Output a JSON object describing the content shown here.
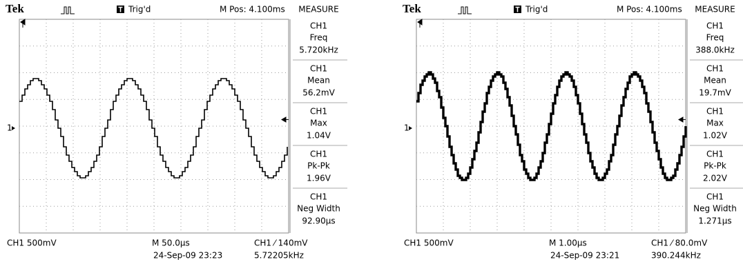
{
  "screens": [
    {
      "header": {
        "brand": "Tek",
        "trigger": "Trig'd",
        "position": "M Pos: 4.100ms",
        "menu": "MEASURE"
      },
      "channel_marker": "1",
      "measurements": [
        {
          "channel": "CH1",
          "label": "Freq",
          "value": "5.720kHz"
        },
        {
          "channel": "CH1",
          "label": "Mean",
          "value": "56.2mV"
        },
        {
          "channel": "CH1",
          "label": "Max",
          "value": "1.04V"
        },
        {
          "channel": "CH1",
          "label": "Pk-Pk",
          "value": "1.96V"
        },
        {
          "channel": "CH1",
          "label": "Neg Width",
          "value": "92.90µs"
        }
      ],
      "footer": {
        "channel_scale": "CH1  500mV",
        "timebase": "M 50.0µs",
        "trigger_level": "CH1 ⁄ 140mV",
        "timestamp": "24-Sep-09 23:23",
        "trigger_freq": "5.72205kHz"
      }
    },
    {
      "header": {
        "brand": "Tek",
        "trigger": "Trig'd",
        "position": "M Pos: 4.100ms",
        "menu": "MEASURE"
      },
      "channel_marker": "1",
      "measurements": [
        {
          "channel": "CH1",
          "label": "Freq",
          "value": "388.0kHz"
        },
        {
          "channel": "CH1",
          "label": "Mean",
          "value": "19.7mV"
        },
        {
          "channel": "CH1",
          "label": "Max",
          "value": "1.02V"
        },
        {
          "channel": "CH1",
          "label": "Pk-Pk",
          "value": "2.02V"
        },
        {
          "channel": "CH1",
          "label": "Neg Width",
          "value": "1.271µs"
        }
      ],
      "footer": {
        "channel_scale": "CH1  500mV",
        "timebase": "M 1.00µs",
        "trigger_level": "CH1 ⁄ 80.0mV",
        "timestamp": "24-Sep-09 23:21",
        "trigger_freq": "390.244kHz"
      }
    }
  ]
}
